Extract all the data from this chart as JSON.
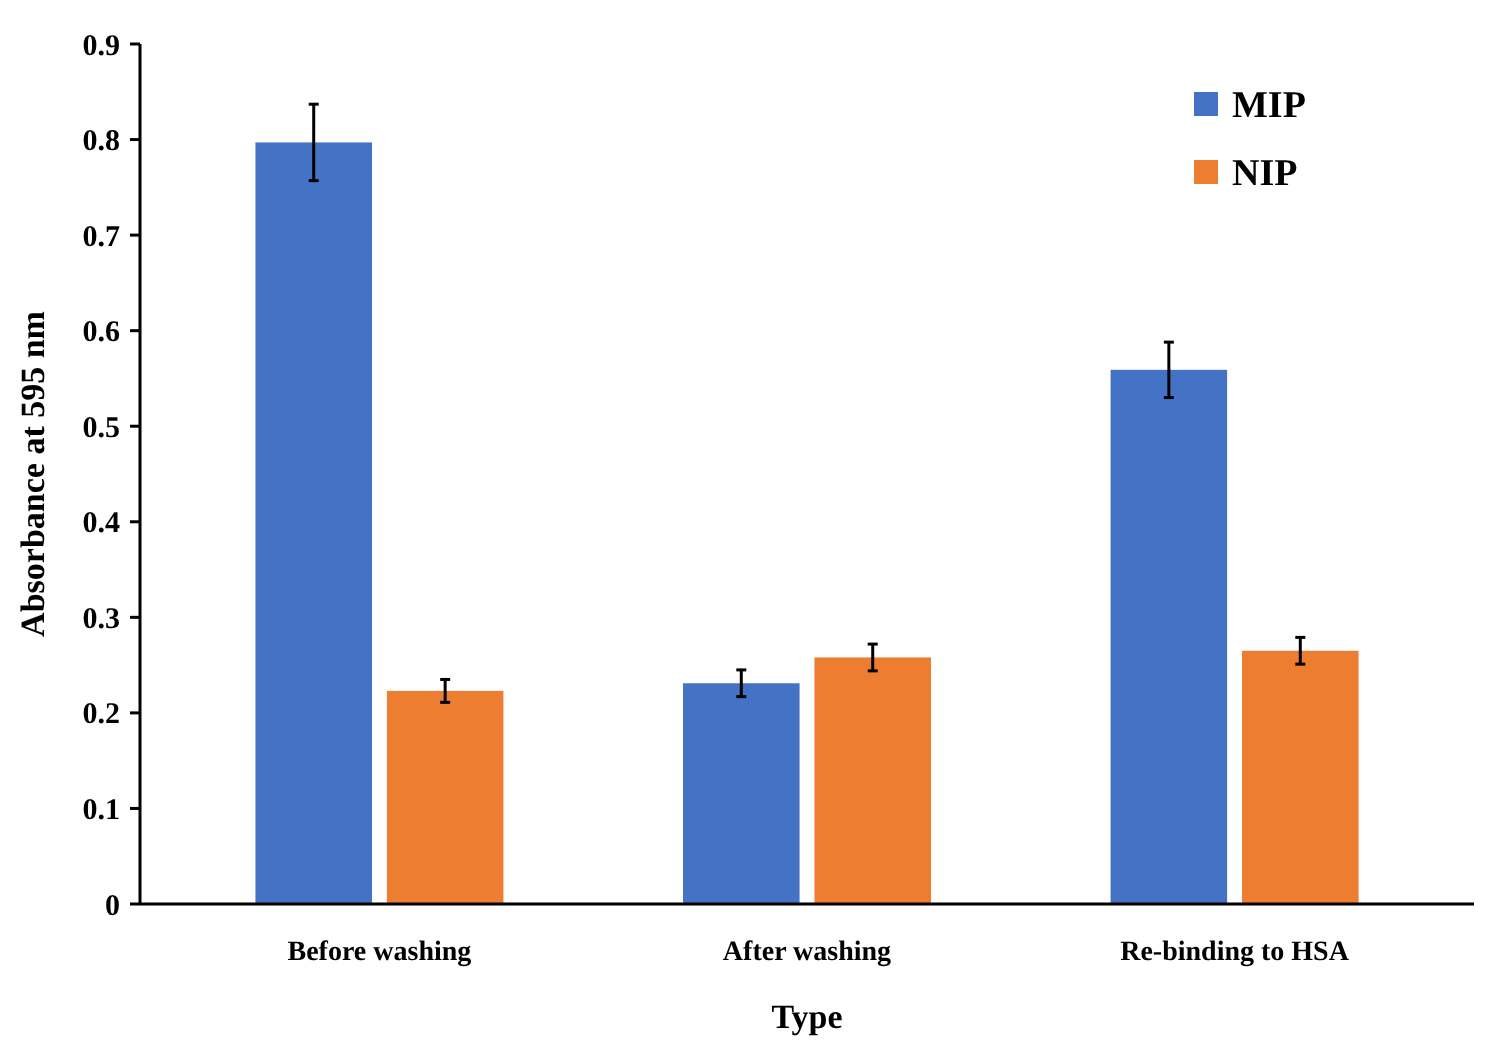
{
  "chart_data": {
    "type": "bar",
    "xlabel": "Type",
    "ylabel": "Absorbance at 595 nm",
    "categories": [
      "Before washing",
      "After washing",
      "Re-binding to HSA"
    ],
    "series": [
      {
        "name": "MIP",
        "color": "#4472c4",
        "values": [
          0.797,
          0.231,
          0.559
        ],
        "errors": [
          0.04,
          0.014,
          0.029
        ]
      },
      {
        "name": "NIP",
        "color": "#ed7d31",
        "values": [
          0.223,
          0.258,
          0.265
        ],
        "errors": [
          0.012,
          0.014,
          0.014
        ]
      }
    ],
    "ylim": [
      0,
      0.9
    ],
    "yticks": [
      0,
      0.1,
      0.2,
      0.3,
      0.4,
      0.5,
      0.6,
      0.7,
      0.8,
      0.9
    ],
    "legend": "top right",
    "grid": false
  }
}
